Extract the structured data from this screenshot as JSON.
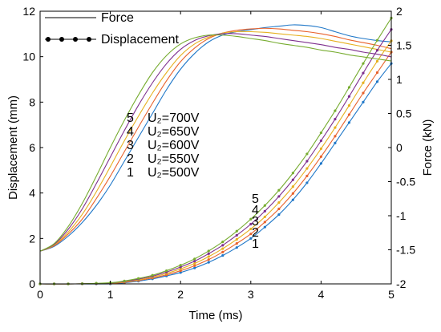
{
  "chart_data": {
    "type": "line",
    "xlabel": "Time (ms)",
    "ylabel_left": "Displacement (mm)",
    "ylabel_right": "Force (kN)",
    "xlim": [
      0,
      5
    ],
    "ylim_left": [
      0,
      12
    ],
    "ylim_right": [
      -2,
      2
    ],
    "x_ticks": [
      "0",
      "1",
      "2",
      "3",
      "4",
      "5"
    ],
    "y_left_ticks": [
      "0",
      "2",
      "4",
      "6",
      "8",
      "10",
      "12"
    ],
    "y_right_ticks": [
      "-2",
      "-1.5",
      "-1",
      "-0.5",
      "0",
      "0.5",
      "1",
      "1.5",
      "2"
    ],
    "legend": [
      {
        "label": "Force",
        "style": "line"
      },
      {
        "label": "Displacement",
        "style": "line-dots"
      }
    ],
    "annotation": {
      "numbers": [
        "5",
        "4",
        "3",
        "2",
        "1"
      ],
      "labels": [
        "U₂=700V",
        "U₂=650V",
        "U₂=600V",
        "U₂=550V",
        "U₂=500V"
      ]
    },
    "curve_numbers": [
      "5",
      "4",
      "3",
      "2",
      "1"
    ],
    "series": [
      {
        "name": "U₂=500V",
        "color": "#1f77c8",
        "force": [
          [
            0,
            -1.52
          ],
          [
            0.2,
            -1.45
          ],
          [
            0.4,
            -1.3
          ],
          [
            0.6,
            -1.1
          ],
          [
            0.8,
            -0.85
          ],
          [
            1.0,
            -0.55
          ],
          [
            1.2,
            -0.2
          ],
          [
            1.4,
            0.15
          ],
          [
            1.6,
            0.5
          ],
          [
            1.8,
            0.85
          ],
          [
            2.0,
            1.15
          ],
          [
            2.2,
            1.38
          ],
          [
            2.4,
            1.55
          ],
          [
            2.6,
            1.65
          ],
          [
            2.8,
            1.7
          ],
          [
            3.0,
            1.73
          ],
          [
            3.2,
            1.76
          ],
          [
            3.4,
            1.78
          ],
          [
            3.6,
            1.8
          ],
          [
            3.8,
            1.79
          ],
          [
            4.0,
            1.76
          ],
          [
            4.2,
            1.7
          ],
          [
            4.4,
            1.64
          ],
          [
            4.6,
            1.6
          ],
          [
            4.8,
            1.57
          ],
          [
            5.0,
            1.55
          ]
        ],
        "displacement": [
          [
            0,
            0
          ],
          [
            0.5,
            0
          ],
          [
            1.0,
            0
          ],
          [
            1.2,
            0.05
          ],
          [
            1.4,
            0.12
          ],
          [
            1.6,
            0.22
          ],
          [
            1.8,
            0.35
          ],
          [
            2.0,
            0.5
          ],
          [
            2.2,
            0.7
          ],
          [
            2.4,
            0.95
          ],
          [
            2.6,
            1.25
          ],
          [
            2.8,
            1.6
          ],
          [
            3.0,
            2.0
          ],
          [
            3.2,
            2.5
          ],
          [
            3.4,
            3.05
          ],
          [
            3.6,
            3.7
          ],
          [
            3.8,
            4.45
          ],
          [
            4.0,
            5.3
          ],
          [
            4.2,
            6.2
          ],
          [
            4.4,
            7.1
          ],
          [
            4.6,
            8.0
          ],
          [
            4.8,
            8.9
          ],
          [
            5.0,
            9.7
          ]
        ]
      },
      {
        "name": "U₂=550V",
        "color": "#e8622c",
        "force": [
          [
            0,
            -1.52
          ],
          [
            0.2,
            -1.44
          ],
          [
            0.4,
            -1.27
          ],
          [
            0.6,
            -1.05
          ],
          [
            0.8,
            -0.75
          ],
          [
            1.0,
            -0.42
          ],
          [
            1.2,
            -0.06
          ],
          [
            1.4,
            0.3
          ],
          [
            1.6,
            0.65
          ],
          [
            1.8,
            0.98
          ],
          [
            2.0,
            1.26
          ],
          [
            2.2,
            1.46
          ],
          [
            2.4,
            1.6
          ],
          [
            2.6,
            1.68
          ],
          [
            2.8,
            1.72
          ],
          [
            3.0,
            1.74
          ],
          [
            3.2,
            1.75
          ],
          [
            3.4,
            1.74
          ],
          [
            3.6,
            1.72
          ],
          [
            3.8,
            1.7
          ],
          [
            4.0,
            1.67
          ],
          [
            4.2,
            1.63
          ],
          [
            4.4,
            1.58
          ],
          [
            4.6,
            1.54
          ],
          [
            4.8,
            1.5
          ],
          [
            5.0,
            1.45
          ]
        ],
        "displacement": [
          [
            0,
            0
          ],
          [
            0.5,
            0
          ],
          [
            1.0,
            0.02
          ],
          [
            1.2,
            0.07
          ],
          [
            1.4,
            0.15
          ],
          [
            1.6,
            0.26
          ],
          [
            1.8,
            0.4
          ],
          [
            2.0,
            0.58
          ],
          [
            2.2,
            0.8
          ],
          [
            2.4,
            1.07
          ],
          [
            2.6,
            1.4
          ],
          [
            2.8,
            1.78
          ],
          [
            3.0,
            2.2
          ],
          [
            3.2,
            2.72
          ],
          [
            3.4,
            3.3
          ],
          [
            3.6,
            3.98
          ],
          [
            3.8,
            4.75
          ],
          [
            4.0,
            5.6
          ],
          [
            4.2,
            6.5
          ],
          [
            4.4,
            7.45
          ],
          [
            4.6,
            8.4
          ],
          [
            4.8,
            9.3
          ],
          [
            5.0,
            10.2
          ]
        ]
      },
      {
        "name": "U₂=600V",
        "color": "#e6b020",
        "force": [
          [
            0,
            -1.52
          ],
          [
            0.2,
            -1.43
          ],
          [
            0.4,
            -1.24
          ],
          [
            0.6,
            -0.98
          ],
          [
            0.8,
            -0.65
          ],
          [
            1.0,
            -0.28
          ],
          [
            1.2,
            0.1
          ],
          [
            1.4,
            0.46
          ],
          [
            1.6,
            0.8
          ],
          [
            1.8,
            1.1
          ],
          [
            2.0,
            1.35
          ],
          [
            2.2,
            1.52
          ],
          [
            2.4,
            1.62
          ],
          [
            2.6,
            1.68
          ],
          [
            2.8,
            1.7
          ],
          [
            3.0,
            1.7
          ],
          [
            3.2,
            1.69
          ],
          [
            3.4,
            1.67
          ],
          [
            3.6,
            1.65
          ],
          [
            3.8,
            1.63
          ],
          [
            4.0,
            1.6
          ],
          [
            4.2,
            1.56
          ],
          [
            4.4,
            1.52
          ],
          [
            4.6,
            1.48
          ],
          [
            4.8,
            1.44
          ],
          [
            5.0,
            1.4
          ]
        ],
        "displacement": [
          [
            0,
            0
          ],
          [
            0.5,
            0
          ],
          [
            1.0,
            0.03
          ],
          [
            1.2,
            0.09
          ],
          [
            1.4,
            0.18
          ],
          [
            1.6,
            0.3
          ],
          [
            1.8,
            0.46
          ],
          [
            2.0,
            0.66
          ],
          [
            2.2,
            0.9
          ],
          [
            2.4,
            1.2
          ],
          [
            2.6,
            1.55
          ],
          [
            2.8,
            1.96
          ],
          [
            3.0,
            2.42
          ],
          [
            3.2,
            2.95
          ],
          [
            3.4,
            3.58
          ],
          [
            3.6,
            4.28
          ],
          [
            3.8,
            5.08
          ],
          [
            4.0,
            5.95
          ],
          [
            4.2,
            6.88
          ],
          [
            4.4,
            7.85
          ],
          [
            4.6,
            8.85
          ],
          [
            4.8,
            9.8
          ],
          [
            5.0,
            10.7
          ]
        ]
      },
      {
        "name": "U₂=650V",
        "color": "#7e2f8e",
        "force": [
          [
            0,
            -1.52
          ],
          [
            0.2,
            -1.42
          ],
          [
            0.4,
            -1.2
          ],
          [
            0.6,
            -0.9
          ],
          [
            0.8,
            -0.53
          ],
          [
            1.0,
            -0.14
          ],
          [
            1.2,
            0.25
          ],
          [
            1.4,
            0.62
          ],
          [
            1.6,
            0.95
          ],
          [
            1.8,
            1.23
          ],
          [
            2.0,
            1.44
          ],
          [
            2.2,
            1.57
          ],
          [
            2.4,
            1.64
          ],
          [
            2.6,
            1.67
          ],
          [
            2.8,
            1.67
          ],
          [
            3.0,
            1.65
          ],
          [
            3.2,
            1.63
          ],
          [
            3.4,
            1.6
          ],
          [
            3.6,
            1.57
          ],
          [
            3.8,
            1.54
          ],
          [
            4.0,
            1.51
          ],
          [
            4.2,
            1.47
          ],
          [
            4.4,
            1.44
          ],
          [
            4.6,
            1.4
          ],
          [
            4.8,
            1.37
          ],
          [
            5.0,
            1.33
          ]
        ],
        "displacement": [
          [
            0,
            0
          ],
          [
            0.5,
            0
          ],
          [
            1.0,
            0.04
          ],
          [
            1.2,
            0.11
          ],
          [
            1.4,
            0.21
          ],
          [
            1.6,
            0.34
          ],
          [
            1.8,
            0.52
          ],
          [
            2.0,
            0.74
          ],
          [
            2.2,
            1.0
          ],
          [
            2.4,
            1.33
          ],
          [
            2.6,
            1.7
          ],
          [
            2.8,
            2.14
          ],
          [
            3.0,
            2.63
          ],
          [
            3.2,
            3.2
          ],
          [
            3.4,
            3.85
          ],
          [
            3.6,
            4.58
          ],
          [
            3.8,
            5.4
          ],
          [
            4.0,
            6.3
          ],
          [
            4.2,
            7.25
          ],
          [
            4.4,
            8.25
          ],
          [
            4.6,
            9.28
          ],
          [
            4.8,
            10.28
          ],
          [
            5.0,
            11.2
          ]
        ]
      },
      {
        "name": "U₂=700V",
        "color": "#77ac30",
        "force": [
          [
            0,
            -1.52
          ],
          [
            0.2,
            -1.41
          ],
          [
            0.4,
            -1.16
          ],
          [
            0.6,
            -0.82
          ],
          [
            0.8,
            -0.42
          ],
          [
            1.0,
            0.0
          ],
          [
            1.2,
            0.4
          ],
          [
            1.4,
            0.77
          ],
          [
            1.6,
            1.1
          ],
          [
            1.8,
            1.35
          ],
          [
            2.0,
            1.52
          ],
          [
            2.2,
            1.61
          ],
          [
            2.4,
            1.65
          ],
          [
            2.6,
            1.65
          ],
          [
            2.8,
            1.63
          ],
          [
            3.0,
            1.6
          ],
          [
            3.2,
            1.57
          ],
          [
            3.4,
            1.53
          ],
          [
            3.6,
            1.5
          ],
          [
            3.8,
            1.47
          ],
          [
            4.0,
            1.43
          ],
          [
            4.2,
            1.4
          ],
          [
            4.4,
            1.36
          ],
          [
            4.6,
            1.33
          ],
          [
            4.8,
            1.3
          ],
          [
            5.0,
            1.27
          ]
        ],
        "displacement": [
          [
            0,
            0
          ],
          [
            0.5,
            0
          ],
          [
            1.0,
            0.05
          ],
          [
            1.2,
            0.13
          ],
          [
            1.4,
            0.24
          ],
          [
            1.6,
            0.38
          ],
          [
            1.8,
            0.58
          ],
          [
            2.0,
            0.82
          ],
          [
            2.2,
            1.1
          ],
          [
            2.4,
            1.45
          ],
          [
            2.6,
            1.85
          ],
          [
            2.8,
            2.32
          ],
          [
            3.0,
            2.85
          ],
          [
            3.2,
            3.45
          ],
          [
            3.4,
            4.12
          ],
          [
            3.6,
            4.88
          ],
          [
            3.8,
            5.72
          ],
          [
            4.0,
            6.65
          ],
          [
            4.2,
            7.62
          ],
          [
            4.4,
            8.65
          ],
          [
            4.6,
            9.7
          ],
          [
            4.8,
            10.72
          ],
          [
            5.0,
            11.7
          ]
        ]
      }
    ]
  }
}
